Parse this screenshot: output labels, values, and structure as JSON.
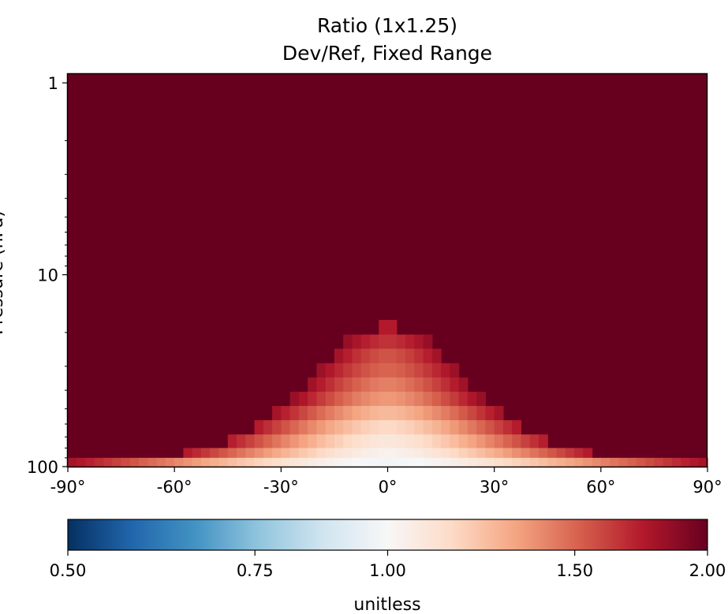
{
  "chart_data": {
    "type": "heatmap",
    "title": "Ratio (1x1.25)",
    "subtitle": "Dev/Ref, Fixed Range",
    "xlabel": "",
    "ylabel": "Pressure (hPa)",
    "x_ticks": [
      "-90°",
      "-60°",
      "-30°",
      "0°",
      "30°",
      "60°",
      "90°"
    ],
    "x_tick_values": [
      -90,
      -60,
      -30,
      0,
      30,
      60,
      90
    ],
    "y_ticks": [
      "1",
      "10",
      "100"
    ],
    "y_tick_values": [
      1,
      10,
      100
    ],
    "y_scale": "log",
    "y_inverted": true,
    "xlim": [
      -90,
      90
    ],
    "ylim": [
      100,
      0.9
    ],
    "colorbar": {
      "label": "unitless",
      "ticks": [
        "0.50",
        "0.75",
        "1.00",
        "1.50",
        "2.00"
      ],
      "tick_values": [
        0.5,
        0.75,
        1.0,
        1.5,
        2.0
      ],
      "range": [
        0.5,
        2.0
      ],
      "scale": "log",
      "colormap": "RdBu_r"
    },
    "background_value": 2.0,
    "layers": [
      {
        "p_top": 17.2,
        "lat_half_width": 3.5,
        "center_value": 1.7,
        "edge_value": 1.9
      },
      {
        "p_top": 20.5,
        "lat_half_width": 12,
        "center_value": 1.65,
        "edge_value": 1.85
      },
      {
        "p_top": 24.3,
        "lat_half_width": 16,
        "center_value": 1.55,
        "edge_value": 1.85
      },
      {
        "p_top": 28.9,
        "lat_half_width": 20,
        "center_value": 1.5,
        "edge_value": 1.85
      },
      {
        "p_top": 34.3,
        "lat_half_width": 23,
        "center_value": 1.42,
        "edge_value": 1.85
      },
      {
        "p_top": 40.7,
        "lat_half_width": 27,
        "center_value": 1.35,
        "edge_value": 1.85
      },
      {
        "p_top": 48.3,
        "lat_half_width": 32,
        "center_value": 1.25,
        "edge_value": 1.8
      },
      {
        "p_top": 57.3,
        "lat_half_width": 37,
        "center_value": 1.15,
        "edge_value": 1.75
      },
      {
        "p_top": 68.0,
        "lat_half_width": 45,
        "center_value": 1.08,
        "edge_value": 1.75
      },
      {
        "p_top": 80.0,
        "lat_half_width": 57,
        "center_value": 1.03,
        "edge_value": 1.75
      },
      {
        "p_top": 90.0,
        "lat_half_width": 90,
        "center_value": 0.98,
        "edge_value": 1.8
      }
    ]
  }
}
